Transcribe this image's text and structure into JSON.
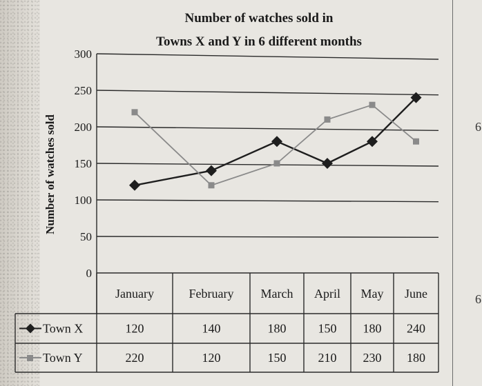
{
  "chart_data": {
    "type": "line",
    "title_lines": [
      "Number of watches sold in",
      "Towns X and Y in 6 different months"
    ],
    "ylabel": "Number of watches sold",
    "xlabel": "",
    "ylim": [
      0,
      300
    ],
    "yticks": [
      0,
      50,
      100,
      150,
      200,
      250,
      300
    ],
    "categories": [
      "January",
      "February",
      "March",
      "April",
      "May",
      "June"
    ],
    "grid": true,
    "series": [
      {
        "name": "Town X",
        "values": [
          120,
          140,
          180,
          150,
          180,
          240
        ],
        "color": "#1e1e1e",
        "marker": "diamond"
      },
      {
        "name": "Town Y",
        "values": [
          220,
          120,
          150,
          210,
          230,
          180
        ],
        "color": "#8a8a8a",
        "marker": "square"
      }
    ]
  },
  "margin_marks": [
    "6",
    "6"
  ]
}
